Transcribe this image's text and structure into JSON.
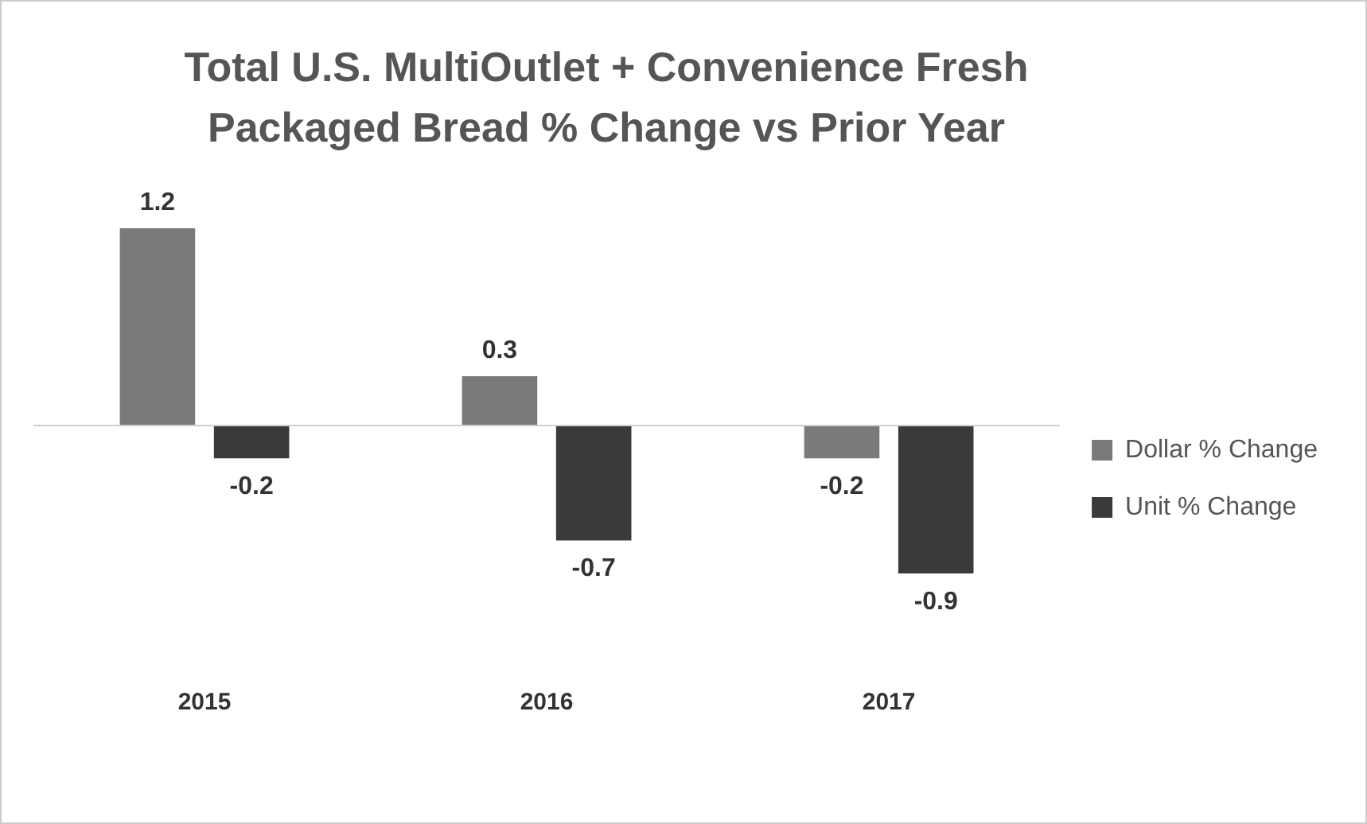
{
  "chart_data": {
    "type": "bar",
    "title": "Total U.S. MultiOutlet + Convenience Fresh Packaged Bread % Change vs Prior Year",
    "categories": [
      "2015",
      "2016",
      "2017"
    ],
    "series": [
      {
        "name": "Dollar % Change",
        "color": "#7a7a7a",
        "values": [
          1.2,
          0.3,
          -0.2
        ]
      },
      {
        "name": "Unit % Change",
        "color": "#3a3a3a",
        "values": [
          -0.2,
          -0.7,
          -0.9
        ]
      }
    ],
    "data_labels": true,
    "legend": "right",
    "grid": false
  }
}
